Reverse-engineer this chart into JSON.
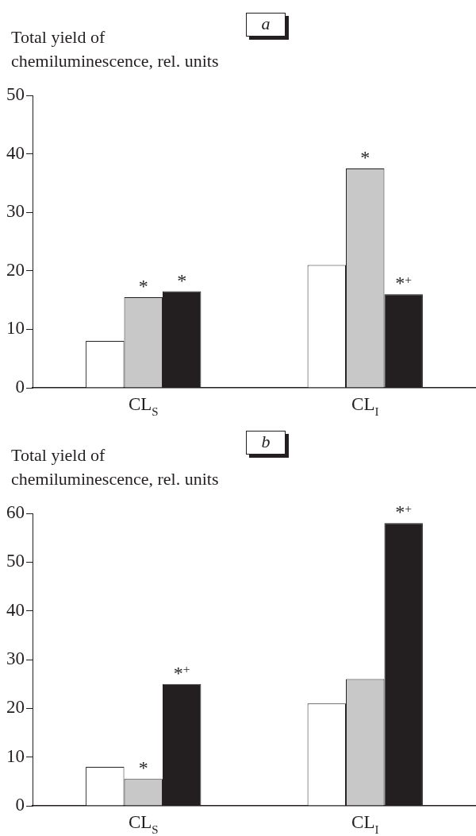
{
  "chart_data": [
    {
      "type": "bar",
      "title": "a",
      "ylabel": "Total yield of chemiluminescence, rel. units",
      "categories": [
        "CL$_{S}$",
        "CL$_{I}$"
      ],
      "series": [
        {
          "color": "#ffffff",
          "values": [
            8,
            21
          ]
        },
        {
          "color": "#c8c8c8",
          "values": [
            15.5,
            37.5
          ],
          "value_labels": [
            "*",
            "*"
          ]
        },
        {
          "color": "#231f20",
          "values": [
            16.5,
            16
          ],
          "value_labels": [
            "*",
            "*$^{+}$"
          ]
        }
      ],
      "ylim": [
        0,
        50
      ],
      "yticks": [
        0,
        10,
        20,
        30,
        40,
        50
      ],
      "grid": false,
      "legend": false
    },
    {
      "type": "bar",
      "title": "b",
      "ylabel": "Total yield of chemiluminescence, rel. units",
      "categories": [
        "CL$_{S}$",
        "CL$_{I}$"
      ],
      "series": [
        {
          "color": "#ffffff",
          "values": [
            8,
            21
          ]
        },
        {
          "color": "#c8c8c8",
          "values": [
            5.5,
            26
          ],
          "value_labels": [
            "*",
            null
          ]
        },
        {
          "color": "#231f20",
          "values": [
            25,
            58
          ],
          "value_labels": [
            "*$^{+}$",
            "*$^{+}$"
          ]
        }
      ],
      "ylim": [
        0,
        60
      ],
      "yticks": [
        0,
        10,
        20,
        30,
        40,
        50,
        60
      ],
      "grid": false,
      "legend": false
    }
  ]
}
